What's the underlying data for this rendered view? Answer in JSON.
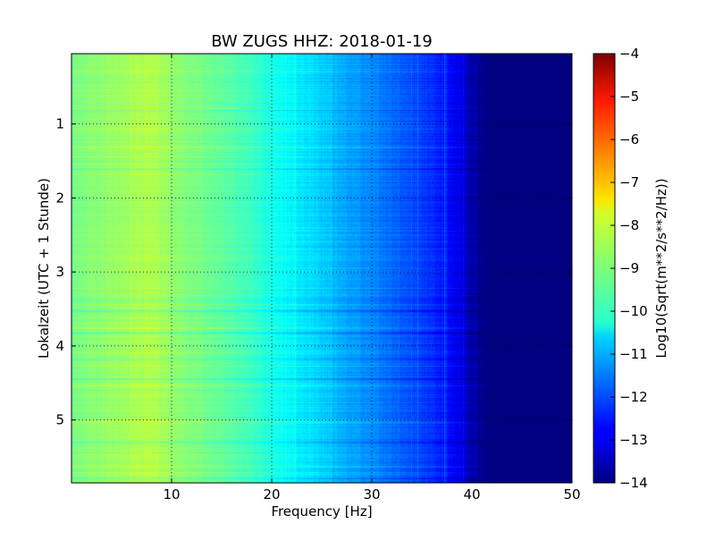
{
  "chart_data": {
    "type": "heatmap",
    "title": "BW ZUGS HHZ: 2018-01-19",
    "xlabel": "Frequency [Hz]",
    "ylabel": "Lokalzeit (UTC + 1 Stunde)",
    "xlim": [
      0,
      50
    ],
    "ylim": [
      5.85,
      0.05
    ],
    "y_axis_inverted": true,
    "xticks": [
      10,
      20,
      30,
      40,
      50
    ],
    "yticks": [
      1,
      2,
      3,
      4,
      5
    ],
    "xtick_labels": [
      "10",
      "20",
      "30",
      "40",
      "50"
    ],
    "ytick_labels": [
      "1",
      "2",
      "3",
      "4",
      "5"
    ],
    "grid": true,
    "grid_style": "dotted",
    "colormap": "jet",
    "colorbar": {
      "label": "Log10(Sqrt(m**2/s**2/Hz))",
      "range": [
        -14,
        -4
      ],
      "ticks": [
        -4,
        -5,
        -6,
        -7,
        -8,
        -9,
        -10,
        -11,
        -12,
        -13,
        -14
      ],
      "tick_labels": [
        "−4",
        "−5",
        "−6",
        "−7",
        "−8",
        "−9",
        "−10",
        "−11",
        "−12",
        "−13",
        "−14"
      ]
    },
    "spectral_profile": {
      "frequency_hz": [
        0,
        2,
        5,
        8,
        10,
        12,
        15,
        18,
        20,
        22,
        24,
        26,
        28,
        30,
        32,
        34,
        36,
        37,
        38,
        39,
        40,
        41,
        42,
        45,
        50
      ],
      "log10_amplitude": [
        -9.1,
        -8.9,
        -8.7,
        -8.5,
        -8.8,
        -9.0,
        -9.3,
        -9.7,
        -10.0,
        -10.3,
        -10.6,
        -10.9,
        -11.2,
        -11.4,
        -11.7,
        -12.0,
        -12.3,
        -12.5,
        -12.8,
        -13.1,
        -13.5,
        -13.9,
        -14.0,
        -14.0,
        -14.0
      ]
    }
  }
}
